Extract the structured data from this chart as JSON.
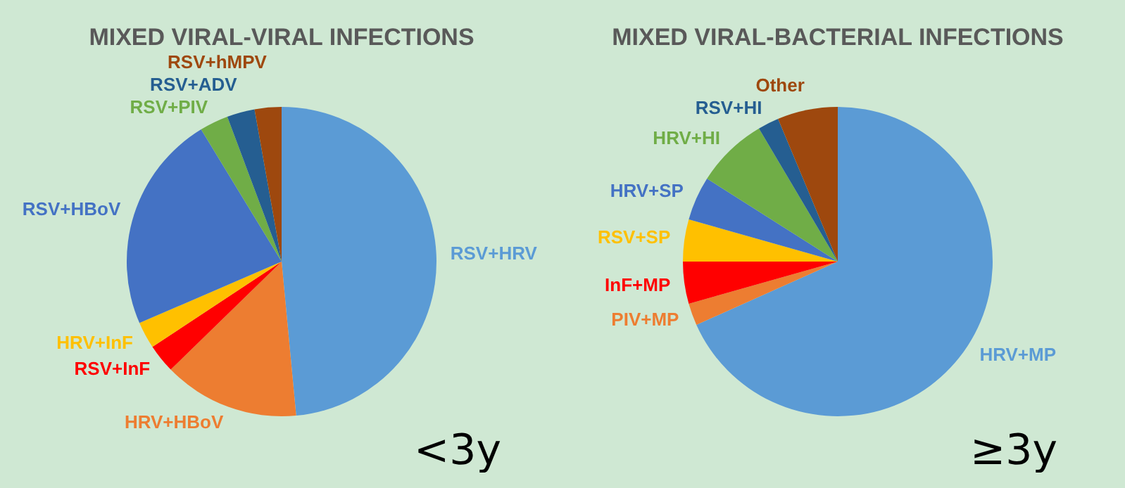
{
  "chart_data": [
    {
      "type": "pie",
      "title": "MIXED VIRAL-VIRAL INFECTIONS",
      "categories": [
        "RSV+HRV",
        "HRV+HBoV",
        "RSV+InF",
        "HRV+InF",
        "RSV+HBoV",
        "RSV+PIV",
        "RSV+ADV",
        "RSV+hMPV"
      ],
      "values": [
        48.5,
        14.2,
        3,
        2.8,
        22.8,
        3,
        2.9,
        2.8
      ],
      "colors": [
        "#5b9bd5",
        "#ed7d31",
        "#ff0000",
        "#ffc000",
        "#4472c4",
        "#70ad47",
        "#255e91",
        "#9e480e"
      ],
      "annotations": [
        "<3y"
      ]
    },
    {
      "type": "pie",
      "title": "MIXED VIRAL-BACTERIAL INFECTIONS",
      "categories": [
        "HRV+MP",
        "PIV+MP",
        "InF+MP",
        "RSV+SP",
        "HRV+SP",
        "HRV+HI",
        "RSV+HI",
        "Other"
      ],
      "values": [
        68.3,
        2.3,
        4.4,
        4.4,
        4.6,
        7.5,
        2.2,
        6.3
      ],
      "colors": [
        "#5b9bd5",
        "#ed7d31",
        "#ff0000",
        "#ffc000",
        "#4472c4",
        "#70ad47",
        "#255e91",
        "#9e480e"
      ],
      "annotations": [
        "≥3y"
      ]
    }
  ]
}
